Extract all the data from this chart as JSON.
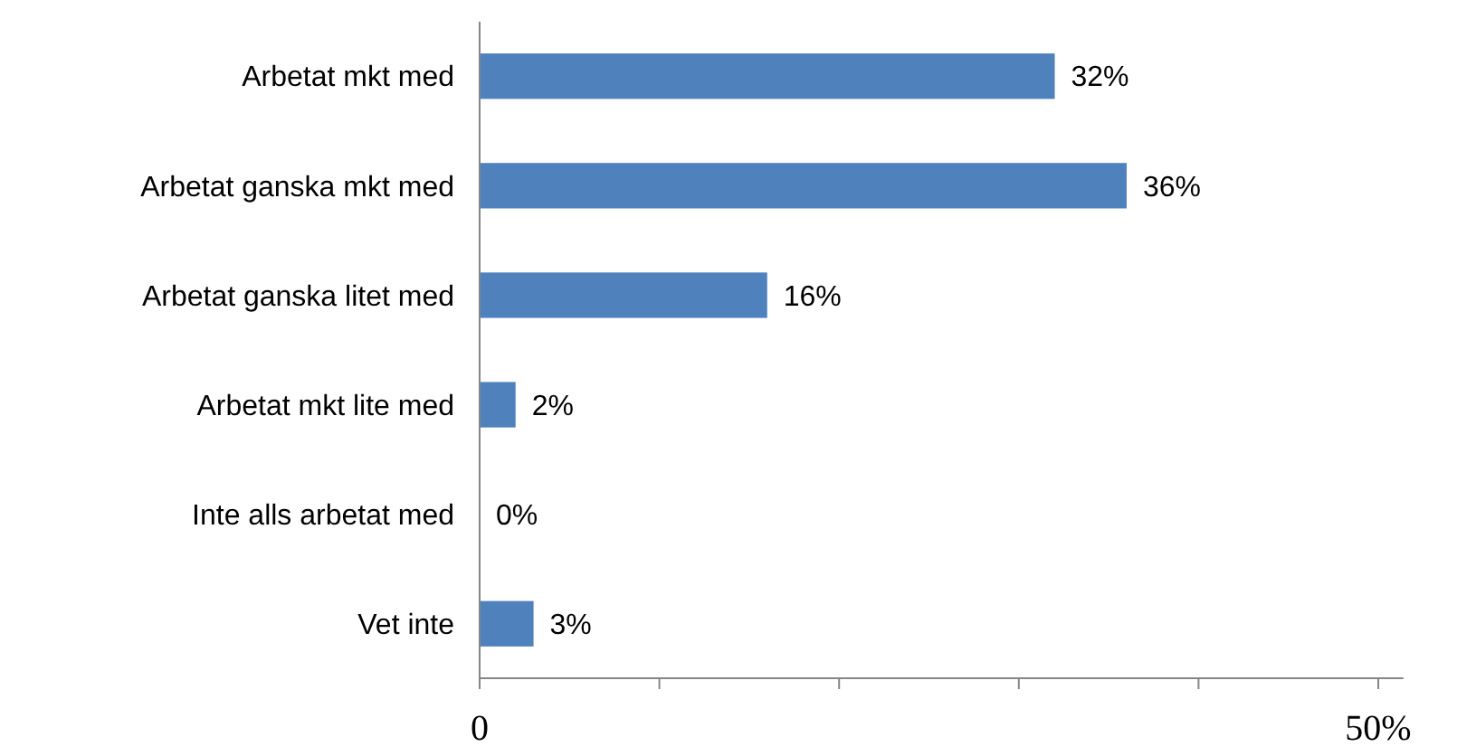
{
  "chart_data": {
    "type": "bar",
    "orientation": "horizontal",
    "categories": [
      "Arbetat mkt med",
      "Arbetat ganska mkt med",
      "Arbetat ganska litet med",
      "Arbetat mkt lite med",
      "Inte alls arbetat med",
      "Vet inte"
    ],
    "values": [
      32,
      36,
      16,
      2,
      0,
      3
    ],
    "value_labels": [
      "32%",
      "36%",
      "16%",
      "2%",
      "0%",
      "3%"
    ],
    "color": "#4f81bd",
    "xlim": [
      0,
      51.4
    ],
    "xticks": [
      0,
      {
        "value": 10,
        "label": null
      },
      {
        "value": 20,
        "label": null
      },
      {
        "value": 30,
        "label": null
      },
      {
        "value": 40,
        "label": null
      },
      {
        "value": 50,
        "label": "50%"
      }
    ],
    "grid": false
  }
}
